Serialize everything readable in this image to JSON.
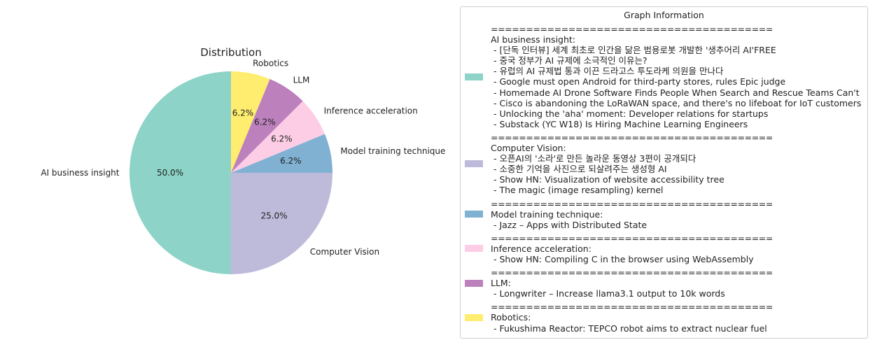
{
  "chart_data": {
    "type": "pie",
    "title": "Distribution",
    "slices": [
      {
        "label": "AI business insight",
        "value": 50.0,
        "pct_label": "50.0%",
        "color": "#8dd3c7"
      },
      {
        "label": "Computer Vision",
        "value": 25.0,
        "pct_label": "25.0%",
        "color": "#bebada"
      },
      {
        "label": "Model training technique",
        "value": 6.25,
        "pct_label": "6.2%",
        "color": "#80b1d3"
      },
      {
        "label": "Inference acceleration",
        "value": 6.25,
        "pct_label": "6.2%",
        "color": "#fccde5"
      },
      {
        "label": "LLM",
        "value": 6.25,
        "pct_label": "6.2%",
        "color": "#bc80bd"
      },
      {
        "label": "Robotics",
        "value": 6.25,
        "pct_label": "6.2%",
        "color": "#ffed6f"
      }
    ]
  },
  "legend": {
    "title": "Graph Information",
    "separator": "========================================",
    "entries": [
      {
        "color": "#8dd3c7",
        "heading": "AI business insight:",
        "items": [
          " - [단독 인터뷰] 세계 최초로 인간을 닮은 범용로봇 개발한 '생추어리 AI'FREE",
          " - 중국 정부가 AI 규제에 소극적인 이유는?",
          " - 유럽의 AI 규제법 통과 이끈 드라고스 투도라케 의원을 만나다",
          " - Google must open Android for third-party stores, rules Epic judge",
          " - Homemade AI Drone Software Finds People When Search and Rescue Teams Can't",
          " - Cisco is abandoning the LoRaWAN space, and there's no lifeboat for IoT customers",
          " - Unlocking the 'aha' moment: Developer relations for startups",
          " - Substack (YC W18) Is Hiring Machine Learning Engineers"
        ]
      },
      {
        "color": "#bebada",
        "heading": "Computer Vision:",
        "items": [
          " - 오픈AI의 '소라'로 만든 놀라운 동영상 3편이 공개되다",
          " - 소중한 기억을 사진으로 되살려주는 생성형 AI",
          " - Show HN: Visualization of website accessibility tree",
          " - The magic (image resampling) kernel"
        ]
      },
      {
        "color": "#80b1d3",
        "heading": "Model training technique:",
        "items": [
          " - Jazz – Apps with Distributed State"
        ]
      },
      {
        "color": "#fccde5",
        "heading": "Inference acceleration:",
        "items": [
          " - Show HN: Compiling C in the browser using WebAssembly"
        ]
      },
      {
        "color": "#bc80bd",
        "heading": "LLM:",
        "items": [
          " - Longwriter – Increase llama3.1 output to 10k words"
        ]
      },
      {
        "color": "#ffed6f",
        "heading": "Robotics:",
        "items": [
          " - Fukushima Reactor: TEPCO robot aims to extract nuclear fuel"
        ]
      }
    ]
  }
}
